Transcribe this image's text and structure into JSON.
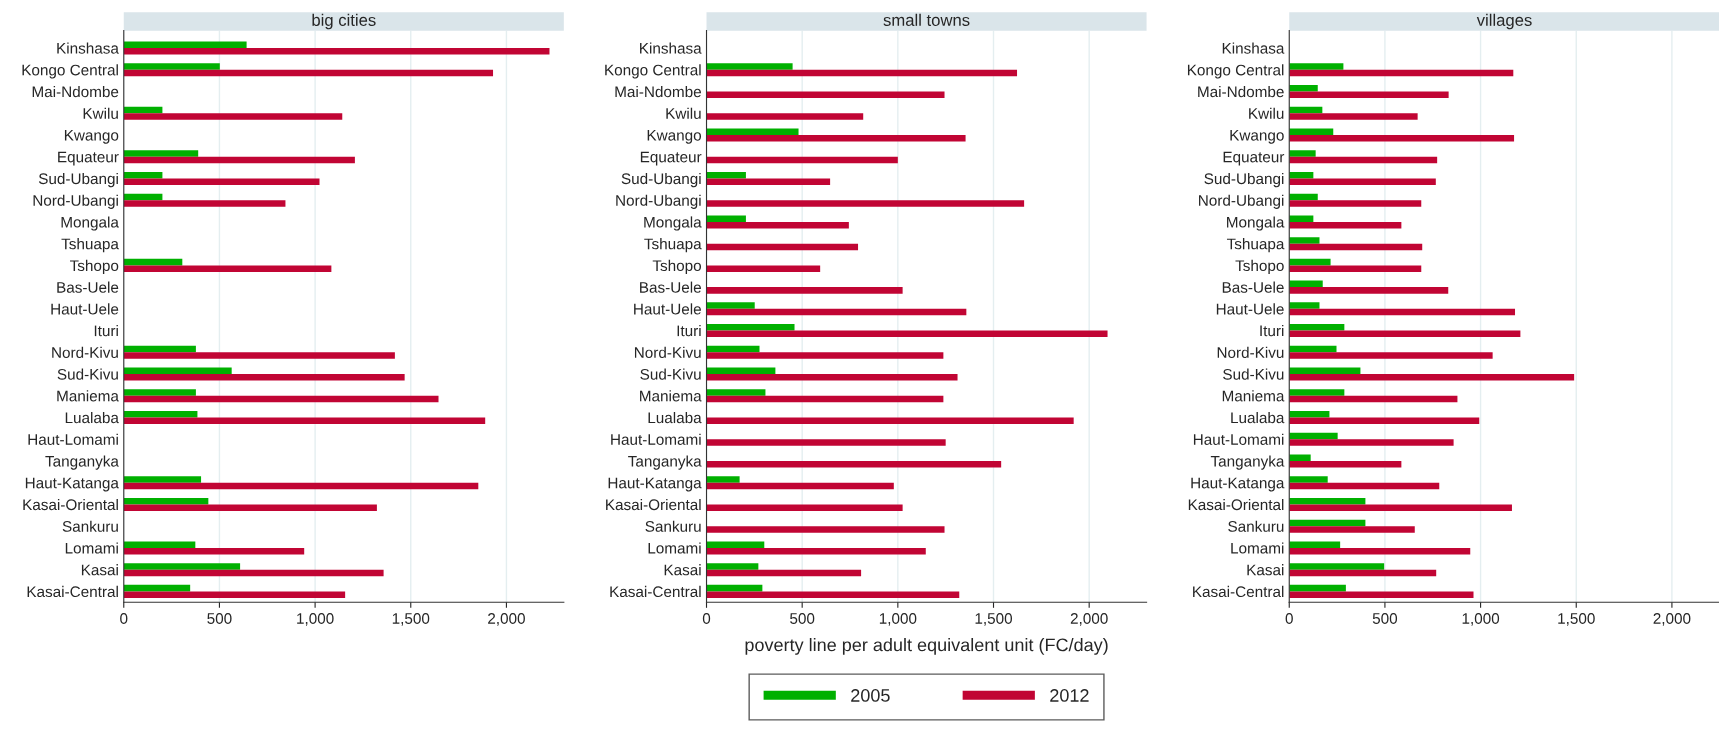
{
  "chart_data": [
    {
      "type": "bar",
      "orientation": "horizontal",
      "title": "big cities",
      "categories": [
        "Kinshasa",
        "Kongo Central",
        "Mai-Ndombe",
        "Kwilu",
        "Kwango",
        "Equateur",
        "Sud-Ubangi",
        "Nord-Ubangi",
        "Mongala",
        "Tshuapa",
        "Tshopo",
        "Bas-Uele",
        "Haut-Uele",
        "Ituri",
        "Nord-Kivu",
        "Sud-Kivu",
        "Maniema",
        "Lualaba",
        "Haut-Lomami",
        "Tanganyka",
        "Haut-Katanga",
        "Kasai-Oriental",
        "Sankuru",
        "Lomami",
        "Kasai",
        "Kasai-Central"
      ],
      "series": [
        {
          "color": "#00b000",
          "values": [
            642,
            502,
            null,
            202,
            null,
            389,
            202,
            202,
            null,
            null,
            306,
            null,
            null,
            null,
            377,
            564,
            377,
            385,
            null,
            null,
            404,
            442,
            null,
            374,
            608,
            347
          ]
        },
        {
          "color": "#c10534",
          "values": [
            2225,
            1930,
            null,
            1142,
            null,
            1208,
            1023,
            845,
            null,
            null,
            1085,
            null,
            null,
            null,
            1417,
            1468,
            1645,
            1889,
            null,
            null,
            1853,
            1323,
            null,
            943,
            1358,
            1157
          ]
        }
      ],
      "xlim": [
        0,
        2300
      ],
      "xticks": [
        0,
        500,
        {
          "value": 1000,
          "label": "1,000"
        },
        {
          "value": 1500,
          "label": "1,500"
        },
        {
          "value": 2000,
          "label": "2,000"
        }
      ],
      "grid": "x"
    },
    {
      "type": "bar",
      "orientation": "horizontal",
      "title": "small towns",
      "xlabel": "poverty line per adult equivalent unit (FC/day)",
      "categories": [
        "Kinshasa",
        "Kongo Central",
        "Mai-Ndombe",
        "Kwilu",
        "Kwango",
        "Equateur",
        "Sud-Ubangi",
        "Nord-Ubangi",
        "Mongala",
        "Tshuapa",
        "Tshopo",
        "Bas-Uele",
        "Haut-Uele",
        "Ituri",
        "Nord-Kivu",
        "Sud-Kivu",
        "Maniema",
        "Lualaba",
        "Haut-Lomami",
        "Tanganyka",
        "Haut-Katanga",
        "Kasai-Oriental",
        "Sankuru",
        "Lomami",
        "Kasai",
        "Kasai-Central"
      ],
      "series": [
        {
          "name": "2005",
          "color": "#00b000",
          "values": [
            null,
            450,
            null,
            null,
            481,
            null,
            206,
            null,
            206,
            null,
            null,
            null,
            252,
            460,
            277,
            360,
            308,
            null,
            null,
            null,
            173,
            null,
            null,
            302,
            271,
            292
          ]
        },
        {
          "name": "2012",
          "color": "#c10534",
          "values": [
            null,
            1623,
            1244,
            819,
            1354,
            1000,
            646,
            1660,
            744,
            792,
            594,
            1025,
            1358,
            2096,
            1238,
            1312,
            1238,
            1919,
            1250,
            1540,
            979,
            1025,
            1244,
            1146,
            808,
            1321
          ]
        }
      ],
      "xlim": [
        0,
        2300
      ],
      "xticks": [
        0,
        500,
        {
          "value": 1000,
          "label": "1,000"
        },
        {
          "value": 1500,
          "label": "1,500"
        },
        {
          "value": 2000,
          "label": "2,000"
        }
      ],
      "grid": "x",
      "legend": "bottom"
    },
    {
      "type": "bar",
      "orientation": "horizontal",
      "title": "villages",
      "categories": [
        "Kinshasa",
        "Kongo Central",
        "Mai-Ndombe",
        "Kwilu",
        "Kwango",
        "Equateur",
        "Sud-Ubangi",
        "Nord-Ubangi",
        "Mongala",
        "Tshuapa",
        "Tshopo",
        "Bas-Uele",
        "Haut-Uele",
        "Ituri",
        "Nord-Kivu",
        "Sud-Kivu",
        "Maniema",
        "Lualaba",
        "Haut-Lomami",
        "Tanganyka",
        "Haut-Katanga",
        "Kasai-Oriental",
        "Sankuru",
        "Lomami",
        "Kasai",
        "Kasai-Central"
      ],
      "series": [
        {
          "color": "#00b000",
          "values": [
            null,
            283,
            149,
            173,
            230,
            138,
            126,
            149,
            126,
            158,
            216,
            175,
            158,
            288,
            247,
            372,
            288,
            210,
            253,
            112,
            201,
            398,
            398,
            266,
            496,
            296
          ]
        },
        {
          "color": "#c10534",
          "values": [
            null,
            1171,
            833,
            671,
            1175,
            773,
            766,
            690,
            586,
            695,
            690,
            831,
            1180,
            1208,
            1063,
            1489,
            879,
            993,
            859,
            586,
            784,
            1164,
            656,
            946,
            768,
            963
          ]
        }
      ],
      "xlim": [
        0,
        2250
      ],
      "xticks": [
        0,
        500,
        {
          "value": 1000,
          "label": "1,000"
        },
        {
          "value": 1500,
          "label": "1,500"
        },
        {
          "value": 2000,
          "label": "2,000"
        }
      ],
      "grid": "x"
    }
  ]
}
